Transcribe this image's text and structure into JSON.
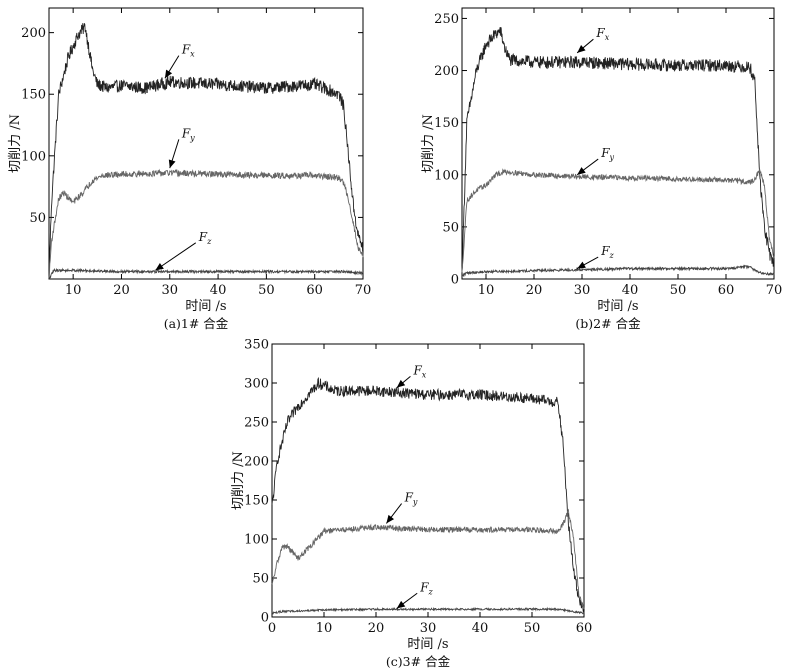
{
  "chart_data": [
    {
      "type": "line",
      "caption": "(a)1# 合金",
      "xlabel": "时间 /s",
      "ylabel": "切削力 /N",
      "xlim": [
        5,
        70
      ],
      "ylim": [
        0,
        220
      ],
      "xticks": [
        10,
        20,
        30,
        40,
        50,
        60,
        70
      ],
      "yticks": [
        50,
        100,
        150,
        200
      ],
      "series": [
        {
          "name": "Fx",
          "color": "#222222",
          "noise": 5,
          "points": [
            [
              5,
              0
            ],
            [
              5.5,
              60
            ],
            [
              7,
              150
            ],
            [
              9,
              180
            ],
            [
              11,
              198
            ],
            [
              12.5,
              205
            ],
            [
              14,
              170
            ],
            [
              15,
              158
            ],
            [
              17,
              155
            ],
            [
              20,
              157
            ],
            [
              25,
              155
            ],
            [
              30,
              160
            ],
            [
              40,
              158
            ],
            [
              50,
              155
            ],
            [
              60,
              158
            ],
            [
              65,
              150
            ],
            [
              66,
              140
            ],
            [
              67,
              100
            ],
            [
              68,
              60
            ],
            [
              69,
              35
            ],
            [
              70,
              25
            ]
          ]
        },
        {
          "name": "Fy",
          "color": "#666666",
          "noise": 2.5,
          "points": [
            [
              5,
              0
            ],
            [
              5.5,
              30
            ],
            [
              7,
              65
            ],
            [
              8,
              70
            ],
            [
              10,
              62
            ],
            [
              12,
              70
            ],
            [
              14,
              80
            ],
            [
              16,
              84
            ],
            [
              20,
              85
            ],
            [
              30,
              86
            ],
            [
              40,
              85
            ],
            [
              50,
              84
            ],
            [
              60,
              84
            ],
            [
              65,
              82
            ],
            [
              66,
              78
            ],
            [
              67,
              65
            ],
            [
              68,
              45
            ],
            [
              69,
              25
            ],
            [
              70,
              20
            ]
          ]
        },
        {
          "name": "Fz",
          "color": "#444444",
          "noise": 1,
          "points": [
            [
              5,
              0
            ],
            [
              6,
              7
            ],
            [
              10,
              7
            ],
            [
              20,
              6
            ],
            [
              30,
              6
            ],
            [
              40,
              6
            ],
            [
              50,
              6
            ],
            [
              60,
              6
            ],
            [
              66,
              6
            ],
            [
              68,
              5
            ],
            [
              70,
              5
            ]
          ]
        }
      ],
      "annotations": [
        {
          "label": "F",
          "sub": "x",
          "text_at": [
            32.5,
            183
          ],
          "arrow_to": [
            29,
            163
          ]
        },
        {
          "label": "F",
          "sub": "y",
          "text_at": [
            32.5,
            115
          ],
          "arrow_to": [
            30,
            90
          ]
        },
        {
          "label": "F",
          "sub": "z",
          "text_at": [
            36,
            31
          ],
          "arrow_to": [
            27,
            7
          ]
        }
      ]
    },
    {
      "type": "line",
      "caption": "(b)2# 合金",
      "xlabel": "时间 /s",
      "ylabel": "切削力 /N",
      "xlim": [
        5,
        70
      ],
      "ylim": [
        0,
        260
      ],
      "xticks": [
        10,
        20,
        30,
        40,
        50,
        60,
        70
      ],
      "yticks": [
        0,
        50,
        100,
        150,
        200,
        250
      ],
      "series": [
        {
          "name": "Fx",
          "color": "#222222",
          "noise": 6,
          "points": [
            [
              5,
              5
            ],
            [
              6,
              150
            ],
            [
              8,
              200
            ],
            [
              10,
              225
            ],
            [
              12,
              235
            ],
            [
              13,
              238
            ],
            [
              14,
              220
            ],
            [
              15,
              210
            ],
            [
              20,
              208
            ],
            [
              30,
              208
            ],
            [
              40,
              206
            ],
            [
              50,
              205
            ],
            [
              60,
              205
            ],
            [
              65,
              203
            ],
            [
              66,
              190
            ],
            [
              67,
              100
            ],
            [
              68,
              50
            ],
            [
              69,
              25
            ],
            [
              70,
              15
            ]
          ]
        },
        {
          "name": "Fy",
          "color": "#666666",
          "noise": 2.5,
          "points": [
            [
              5,
              5
            ],
            [
              6,
              75
            ],
            [
              8,
              85
            ],
            [
              10,
              90
            ],
            [
              12,
              100
            ],
            [
              14,
              103
            ],
            [
              16,
              102
            ],
            [
              20,
              100
            ],
            [
              30,
              98
            ],
            [
              40,
              97
            ],
            [
              50,
              96
            ],
            [
              60,
              95
            ],
            [
              65,
              93
            ],
            [
              66,
              95
            ],
            [
              67,
              105
            ],
            [
              68,
              90
            ],
            [
              69,
              40
            ],
            [
              70,
              20
            ]
          ]
        },
        {
          "name": "Fz",
          "color": "#444444",
          "noise": 1.2,
          "points": [
            [
              5,
              3
            ],
            [
              6,
              6
            ],
            [
              10,
              7
            ],
            [
              20,
              8
            ],
            [
              30,
              9
            ],
            [
              40,
              10
            ],
            [
              50,
              10
            ],
            [
              60,
              10
            ],
            [
              65,
              12
            ],
            [
              66,
              8
            ],
            [
              68,
              5
            ],
            [
              70,
              5
            ]
          ]
        }
      ],
      "annotations": [
        {
          "label": "F",
          "sub": "x",
          "text_at": [
            33,
            232
          ],
          "arrow_to": [
            29,
            217
          ]
        },
        {
          "label": "F",
          "sub": "y",
          "text_at": [
            34,
            117
          ],
          "arrow_to": [
            29,
            100
          ]
        },
        {
          "label": "F",
          "sub": "z",
          "text_at": [
            34,
            23
          ],
          "arrow_to": [
            29,
            10
          ]
        }
      ]
    },
    {
      "type": "line",
      "caption": "(c)3# 合金",
      "xlabel": "时间 /s",
      "ylabel": "切削力 /N",
      "xlim": [
        0,
        60
      ],
      "ylim": [
        0,
        350
      ],
      "xticks": [
        0,
        10,
        20,
        30,
        40,
        50,
        60
      ],
      "yticks": [
        0,
        50,
        100,
        150,
        200,
        250,
        300,
        350
      ],
      "series": [
        {
          "name": "Fx",
          "color": "#222222",
          "noise": 7,
          "points": [
            [
              0,
              140
            ],
            [
              1,
              200
            ],
            [
              3,
              250
            ],
            [
              5,
              270
            ],
            [
              7,
              285
            ],
            [
              9,
              300
            ],
            [
              12,
              290
            ],
            [
              20,
              290
            ],
            [
              30,
              285
            ],
            [
              40,
              285
            ],
            [
              50,
              280
            ],
            [
              55,
              275
            ],
            [
              56,
              220
            ],
            [
              57,
              120
            ],
            [
              58,
              60
            ],
            [
              59,
              25
            ],
            [
              60,
              10
            ]
          ]
        },
        {
          "name": "Fy",
          "color": "#666666",
          "noise": 3.5,
          "points": [
            [
              0,
              40
            ],
            [
              1,
              70
            ],
            [
              2,
              90
            ],
            [
              3,
              90
            ],
            [
              5,
              75
            ],
            [
              8,
              95
            ],
            [
              10,
              110
            ],
            [
              20,
              115
            ],
            [
              30,
              112
            ],
            [
              40,
              112
            ],
            [
              50,
              112
            ],
            [
              55,
              110
            ],
            [
              56,
              120
            ],
            [
              57,
              135
            ],
            [
              58,
              100
            ],
            [
              59,
              30
            ],
            [
              60,
              10
            ]
          ]
        },
        {
          "name": "Fz",
          "color": "#444444",
          "noise": 1.2,
          "points": [
            [
              0,
              5
            ],
            [
              2,
              7
            ],
            [
              10,
              9
            ],
            [
              20,
              10
            ],
            [
              30,
              10
            ],
            [
              40,
              10
            ],
            [
              50,
              10
            ],
            [
              55,
              10
            ],
            [
              57,
              8
            ],
            [
              60,
              5
            ]
          ]
        }
      ],
      "annotations": [
        {
          "label": "F",
          "sub": "x",
          "text_at": [
            27.2,
            311
          ],
          "arrow_to": [
            24,
            294
          ]
        },
        {
          "label": "F",
          "sub": "y",
          "text_at": [
            25.5,
            148
          ],
          "arrow_to": [
            22,
            120
          ]
        },
        {
          "label": "F",
          "sub": "z",
          "text_at": [
            28.5,
            33
          ],
          "arrow_to": [
            24,
            11
          ]
        }
      ]
    }
  ]
}
